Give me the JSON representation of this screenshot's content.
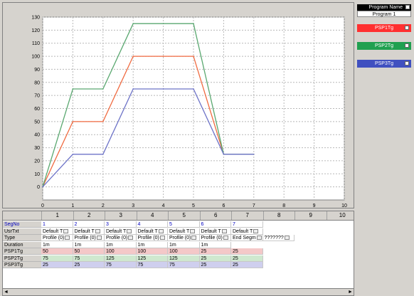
{
  "program": {
    "header": "Program Name",
    "name": "Program 1"
  },
  "legend": [
    {
      "label": "PSP1Tg",
      "color": "#ff3030"
    },
    {
      "label": "PSP2Tg",
      "color": "#20a050"
    },
    {
      "label": "PSP3Tg",
      "color": "#4050c0"
    }
  ],
  "chart_data": {
    "type": "line",
    "x": [
      0,
      1,
      2,
      3,
      4,
      5,
      6,
      7
    ],
    "xlim": [
      0,
      10
    ],
    "ylim": [
      -10,
      130
    ],
    "yticks": [
      0,
      10,
      20,
      30,
      40,
      50,
      60,
      70,
      80,
      90,
      100,
      110,
      120,
      130
    ],
    "xticks": [
      0,
      1,
      2,
      3,
      4,
      5,
      6,
      7,
      8,
      9,
      10
    ],
    "grid": true,
    "series": [
      {
        "name": "PSP1Tg",
        "color": "#f06a40",
        "points": [
          [
            0,
            0
          ],
          [
            1,
            50
          ],
          [
            2,
            50
          ],
          [
            3,
            100
          ],
          [
            4,
            100
          ],
          [
            5,
            100
          ],
          [
            6,
            25
          ],
          [
            7,
            25
          ]
        ]
      },
      {
        "name": "PSP2Tg",
        "color": "#5aa870",
        "points": [
          [
            0,
            0
          ],
          [
            1,
            75
          ],
          [
            2,
            75
          ],
          [
            3,
            125
          ],
          [
            4,
            125
          ],
          [
            5,
            125
          ],
          [
            6,
            25
          ],
          [
            7,
            25
          ]
        ]
      },
      {
        "name": "PSP3Tg",
        "color": "#6e74c8",
        "points": [
          [
            0,
            0
          ],
          [
            1,
            25
          ],
          [
            2,
            25
          ],
          [
            3,
            75
          ],
          [
            4,
            75
          ],
          [
            5,
            75
          ],
          [
            6,
            25
          ],
          [
            7,
            25
          ]
        ]
      }
    ]
  },
  "table": {
    "col_headers": [
      "1",
      "2",
      "3",
      "4",
      "5",
      "6",
      "7",
      "8",
      "9",
      "10"
    ],
    "row_labels": [
      "SegNo",
      "UsrTxt",
      "Type",
      "Duration",
      "PSP1Tg",
      "PSP2Tg",
      "PSP3Tg"
    ],
    "segno": [
      "1",
      "2",
      "3",
      "4",
      "5",
      "6",
      "7"
    ],
    "usrtxt": [
      "Default T",
      "Default T",
      "Default T",
      "Default T",
      "Default T",
      "Default T",
      "Default T"
    ],
    "type": [
      "Profile (0)",
      "Profile (0)",
      "Profile (0)",
      "Profile (0)",
      "Profile (0)",
      "Profile (0)",
      "End Segm",
      "???????"
    ],
    "duration": [
      "1m",
      "1m",
      "1m",
      "1m",
      "1m",
      "1m"
    ],
    "psp1": [
      "50",
      "50",
      "100",
      "100",
      "100",
      "25",
      "25"
    ],
    "psp2": [
      "75",
      "75",
      "125",
      "125",
      "125",
      "25",
      "25"
    ],
    "psp3": [
      "25",
      "25",
      "75",
      "75",
      "75",
      "25",
      "25"
    ],
    "row_colors": {
      "psp1": "#f4c8c8",
      "psp2": "#cfe8cf",
      "psp3": "#cfcfee"
    }
  }
}
